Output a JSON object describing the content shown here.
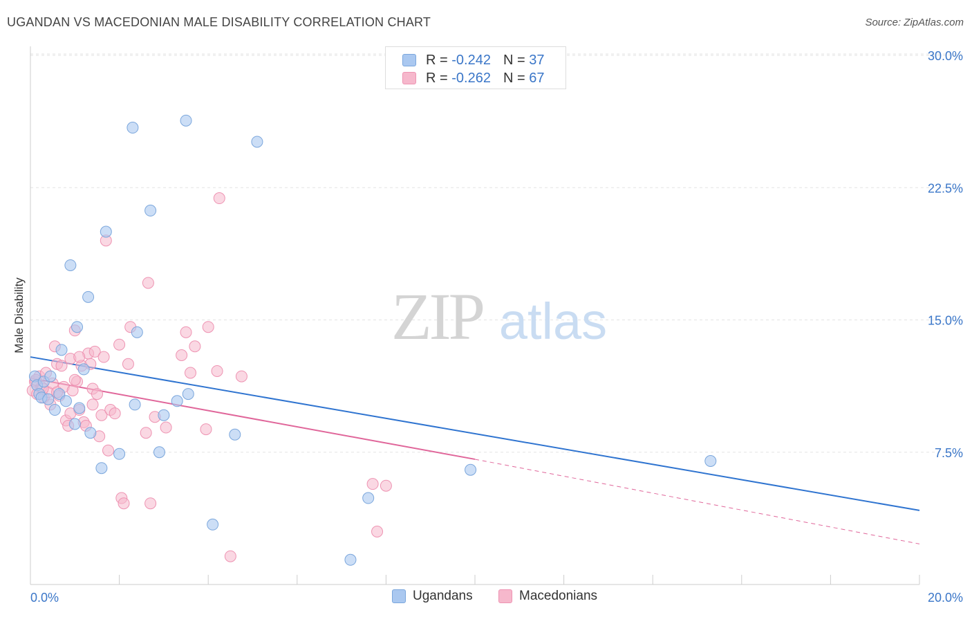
{
  "header": {
    "title": "UGANDAN VS MACEDONIAN MALE DISABILITY CORRELATION CHART",
    "source": "Source: ZipAtlas.com"
  },
  "watermark": {
    "zip": "ZIP",
    "atlas": "atlas"
  },
  "legend": {
    "items": [
      {
        "r_label": "R = ",
        "r_value": "-0.242",
        "n_label": "N = ",
        "n_value": "37"
      },
      {
        "r_label": "R = ",
        "r_value": "-0.262",
        "n_label": "N = ",
        "n_value": "67"
      }
    ]
  },
  "bottom_legend": {
    "ugandans": "Ugandans",
    "macedonians": "Macedonians"
  },
  "colors": {
    "ugandans_fill": "#aac8f0",
    "ugandans_stroke": "#7aa6dc",
    "ugandans_line": "#2f74d0",
    "macedonians_fill": "#f6b8cc",
    "macedonians_stroke": "#ee93b2",
    "macedonians_line": "#e0669a",
    "tick_label": "#3a76c8",
    "grid": "#e3e3e3"
  },
  "chart_data": {
    "type": "scatter",
    "title": "UGANDAN VS MACEDONIAN MALE DISABILITY CORRELATION CHART",
    "xlabel": "",
    "ylabel": "Male Disability",
    "xlim": [
      0,
      20
    ],
    "ylim": [
      0,
      30
    ],
    "x_tick_labels": [
      "0.0%",
      "20.0%"
    ],
    "y_ticks": [
      7.5,
      15,
      22.5,
      30
    ],
    "y_tick_labels": [
      "7.5%",
      "15.0%",
      "22.5%",
      "30.0%"
    ],
    "series": [
      {
        "name": "Ugandans",
        "r": -0.242,
        "n": 37,
        "trend": {
          "x0": 0,
          "y0": 12.9,
          "x1": 20,
          "y1": 4.2
        },
        "points": [
          [
            0.1,
            11.8
          ],
          [
            0.15,
            11.3
          ],
          [
            0.2,
            10.8
          ],
          [
            0.25,
            10.6
          ],
          [
            0.3,
            11.5
          ],
          [
            0.4,
            10.5
          ],
          [
            0.45,
            11.8
          ],
          [
            0.55,
            9.9
          ],
          [
            0.65,
            10.8
          ],
          [
            0.7,
            13.3
          ],
          [
            0.8,
            10.4
          ],
          [
            0.9,
            18.1
          ],
          [
            1.0,
            9.1
          ],
          [
            1.05,
            14.6
          ],
          [
            1.1,
            10.0
          ],
          [
            1.2,
            12.2
          ],
          [
            1.3,
            16.3
          ],
          [
            1.35,
            8.6
          ],
          [
            1.6,
            6.6
          ],
          [
            1.7,
            20.0
          ],
          [
            2.0,
            7.4
          ],
          [
            2.3,
            25.9
          ],
          [
            2.35,
            10.2
          ],
          [
            2.4,
            14.3
          ],
          [
            2.7,
            21.2
          ],
          [
            2.9,
            7.5
          ],
          [
            3.0,
            9.6
          ],
          [
            3.3,
            10.4
          ],
          [
            3.5,
            26.3
          ],
          [
            3.55,
            10.8
          ],
          [
            4.1,
            3.4
          ],
          [
            4.6,
            8.5
          ],
          [
            5.1,
            25.1
          ],
          [
            7.2,
            1.4
          ],
          [
            7.6,
            4.9
          ],
          [
            9.9,
            6.5
          ],
          [
            15.3,
            7.0
          ]
        ]
      },
      {
        "name": "Macedonians",
        "r": -0.262,
        "n": 67,
        "trend": {
          "x0": 0,
          "y0": 11.7,
          "x1": 10.0,
          "y1": 7.1,
          "dash_x1": 20,
          "dash_y1": 2.3
        },
        "points": [
          [
            0.05,
            11.0
          ],
          [
            0.1,
            11.5
          ],
          [
            0.15,
            10.8
          ],
          [
            0.2,
            11.8
          ],
          [
            0.25,
            11.2
          ],
          [
            0.3,
            10.6
          ],
          [
            0.35,
            12.0
          ],
          [
            0.4,
            10.9
          ],
          [
            0.45,
            10.2
          ],
          [
            0.5,
            11.4
          ],
          [
            0.55,
            13.5
          ],
          [
            0.6,
            12.5
          ],
          [
            0.65,
            10.7
          ],
          [
            0.7,
            12.4
          ],
          [
            0.75,
            11.2
          ],
          [
            0.8,
            9.3
          ],
          [
            0.85,
            9.0
          ],
          [
            0.9,
            12.8
          ],
          [
            0.95,
            11.0
          ],
          [
            1.0,
            14.4
          ],
          [
            1.05,
            11.5
          ],
          [
            1.1,
            9.9
          ],
          [
            1.15,
            12.4
          ],
          [
            1.2,
            9.2
          ],
          [
            1.25,
            9.0
          ],
          [
            1.3,
            13.1
          ],
          [
            1.35,
            12.5
          ],
          [
            1.4,
            11.1
          ],
          [
            1.45,
            13.2
          ],
          [
            1.5,
            10.8
          ],
          [
            1.55,
            8.4
          ],
          [
            1.6,
            9.6
          ],
          [
            1.65,
            12.9
          ],
          [
            1.7,
            19.5
          ],
          [
            1.75,
            7.6
          ],
          [
            1.8,
            9.9
          ],
          [
            1.9,
            9.7
          ],
          [
            2.0,
            13.6
          ],
          [
            2.05,
            4.9
          ],
          [
            2.1,
            4.6
          ],
          [
            2.2,
            12.5
          ],
          [
            2.25,
            14.6
          ],
          [
            2.6,
            8.6
          ],
          [
            2.65,
            17.1
          ],
          [
            2.7,
            4.6
          ],
          [
            2.8,
            9.5
          ],
          [
            3.05,
            8.9
          ],
          [
            3.4,
            13.0
          ],
          [
            3.5,
            14.3
          ],
          [
            3.6,
            12.0
          ],
          [
            3.7,
            13.5
          ],
          [
            3.95,
            8.8
          ],
          [
            4.0,
            14.6
          ],
          [
            4.2,
            12.1
          ],
          [
            4.25,
            21.9
          ],
          [
            4.5,
            1.6
          ],
          [
            4.75,
            11.8
          ],
          [
            7.7,
            5.7
          ],
          [
            7.8,
            3.0
          ],
          [
            8.0,
            5.6
          ],
          [
            0.12,
            11.6
          ],
          [
            0.28,
            11.1
          ],
          [
            0.6,
            10.9
          ],
          [
            1.0,
            11.6
          ],
          [
            1.4,
            10.2
          ],
          [
            1.1,
            12.9
          ],
          [
            0.9,
            9.7
          ]
        ]
      }
    ]
  }
}
